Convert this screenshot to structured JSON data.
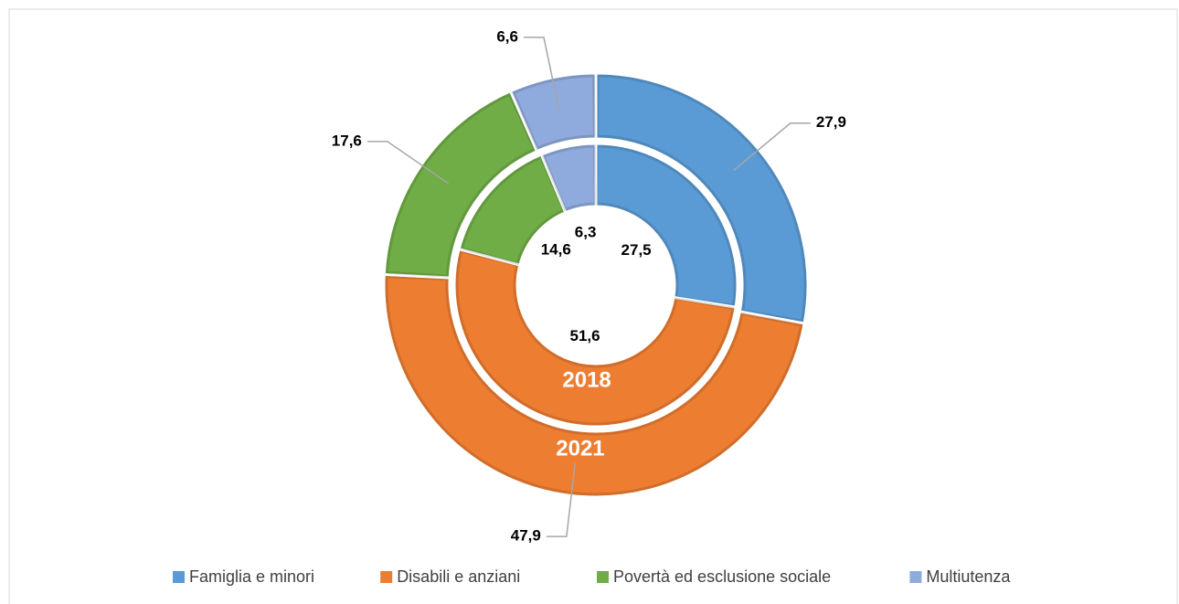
{
  "chart_data": {
    "type": "donut",
    "categories": [
      "Famiglia e minori",
      "Disabili e anziani",
      "Povertà ed esclusione sociale",
      "Multiutenza"
    ],
    "colors": [
      "#5b9bd5",
      "#ed7d31",
      "#70ad47",
      "#8faadc"
    ],
    "series": [
      {
        "name": "2018",
        "values": [
          27.5,
          51.6,
          14.6,
          6.3
        ],
        "value_labels": [
          "27,5",
          "51,6",
          "14,6",
          "6,3"
        ]
      },
      {
        "name": "2021",
        "values": [
          27.9,
          47.9,
          17.6,
          6.6
        ],
        "value_labels": [
          "27,9",
          "47,9",
          "17,6",
          "6,6"
        ]
      }
    ],
    "legend": "bottom"
  }
}
